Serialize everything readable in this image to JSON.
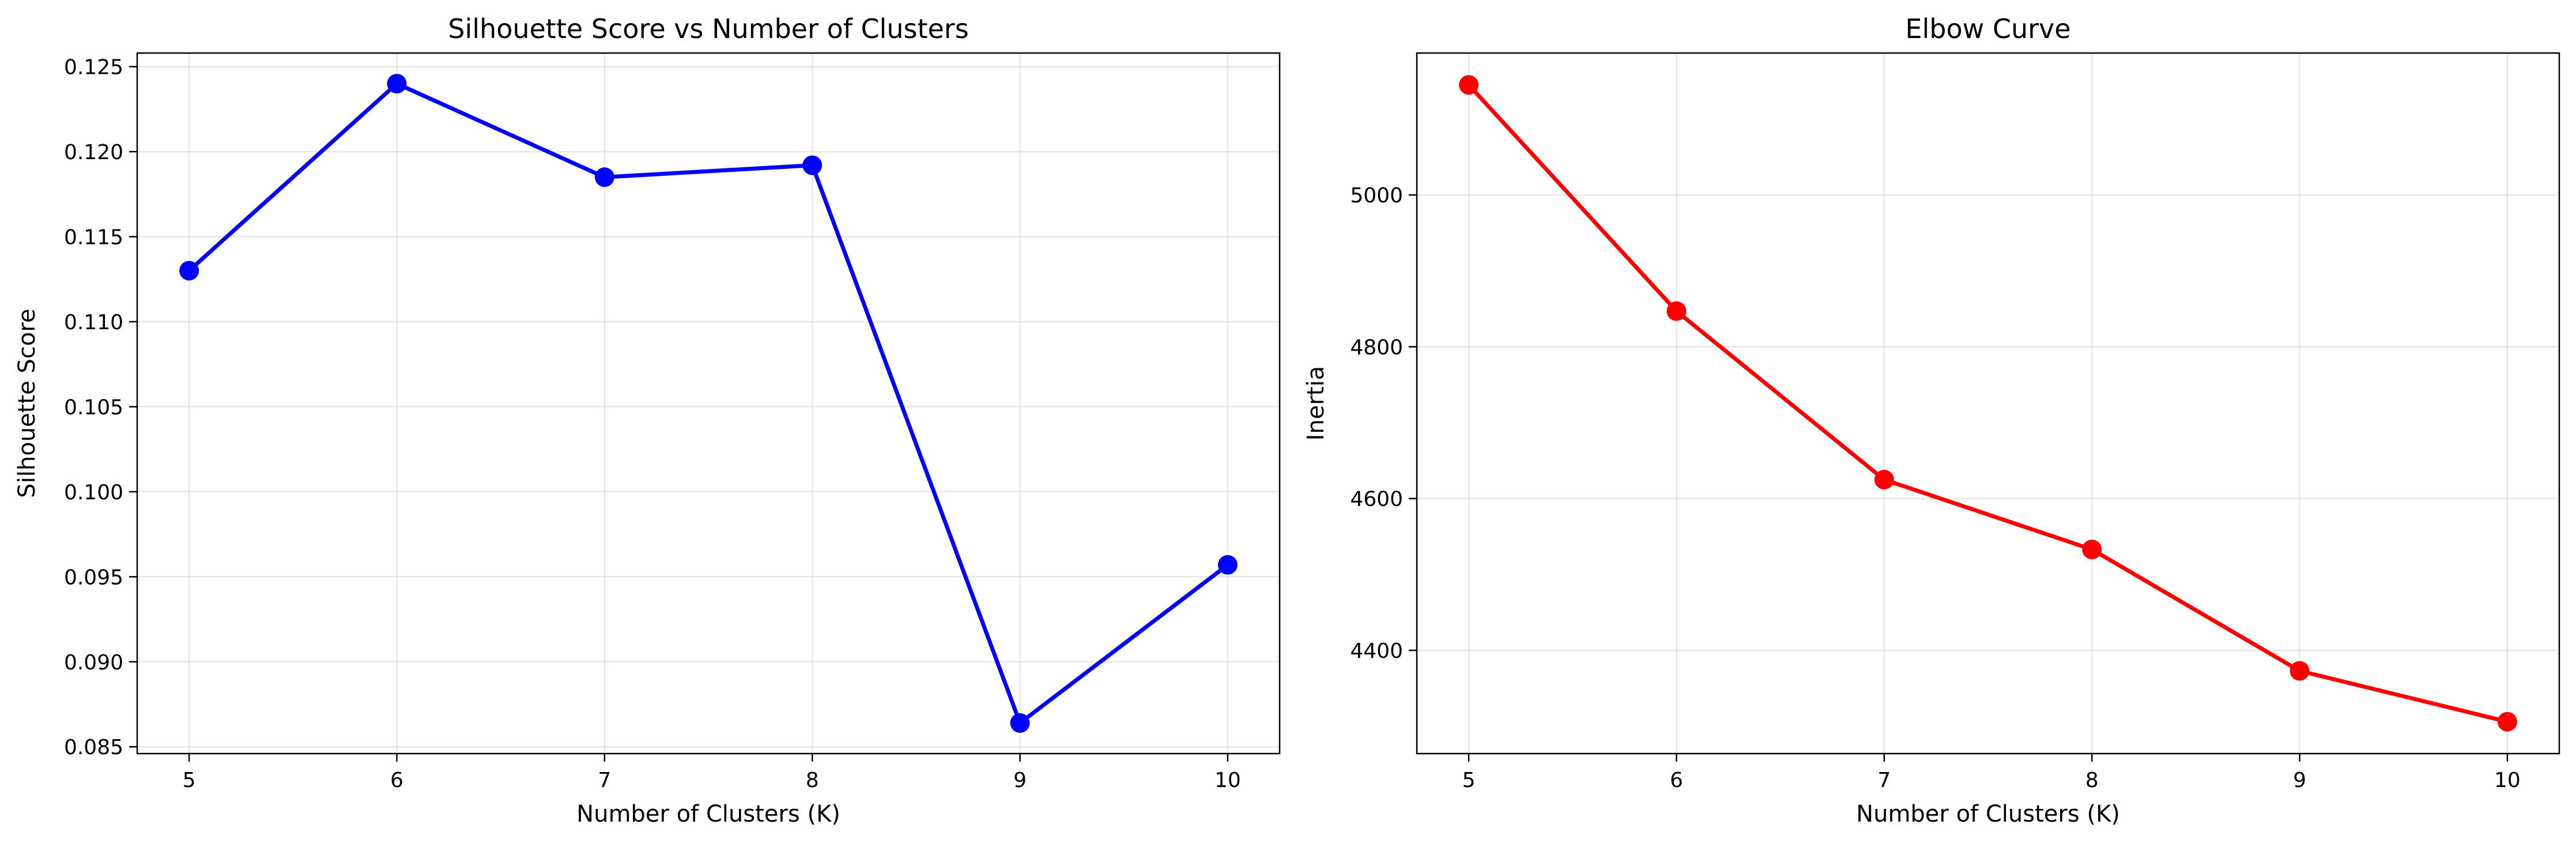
{
  "chart_data": [
    {
      "type": "line",
      "title": "Silhouette Score vs Number of Clusters",
      "xlabel": "Number of Clusters (K)",
      "ylabel": "Silhouette Score",
      "x": [
        5,
        6,
        7,
        8,
        9,
        10
      ],
      "series": [
        {
          "values": [
            0.113,
            0.124,
            0.1185,
            0.1192,
            0.0864,
            0.0957
          ],
          "color": "#0000ff",
          "marker": "circle"
        }
      ],
      "xticks": [
        "5",
        "6",
        "7",
        "8",
        "9",
        "10"
      ],
      "yticks": [
        "0.085",
        "0.090",
        "0.095",
        "0.100",
        "0.105",
        "0.110",
        "0.115",
        "0.120",
        "0.125"
      ],
      "xlim": [
        4.75,
        10.25
      ],
      "ylim": [
        0.0846,
        0.1258
      ],
      "grid": true
    },
    {
      "type": "line",
      "title": "Elbow Curve",
      "xlabel": "Number of Clusters (K)",
      "ylabel": "Inertia",
      "x": [
        5,
        6,
        7,
        8,
        9,
        10
      ],
      "series": [
        {
          "values": [
            5145,
            4847,
            4625,
            4533,
            4373,
            4306
          ],
          "color": "#ff0000",
          "marker": "circle"
        }
      ],
      "xticks": [
        "5",
        "6",
        "7",
        "8",
        "9",
        "10"
      ],
      "yticks": [
        "4400",
        "4600",
        "4800",
        "5000"
      ],
      "xlim": [
        4.75,
        10.25
      ],
      "ylim": [
        4264,
        5187
      ],
      "grid": true
    }
  ]
}
